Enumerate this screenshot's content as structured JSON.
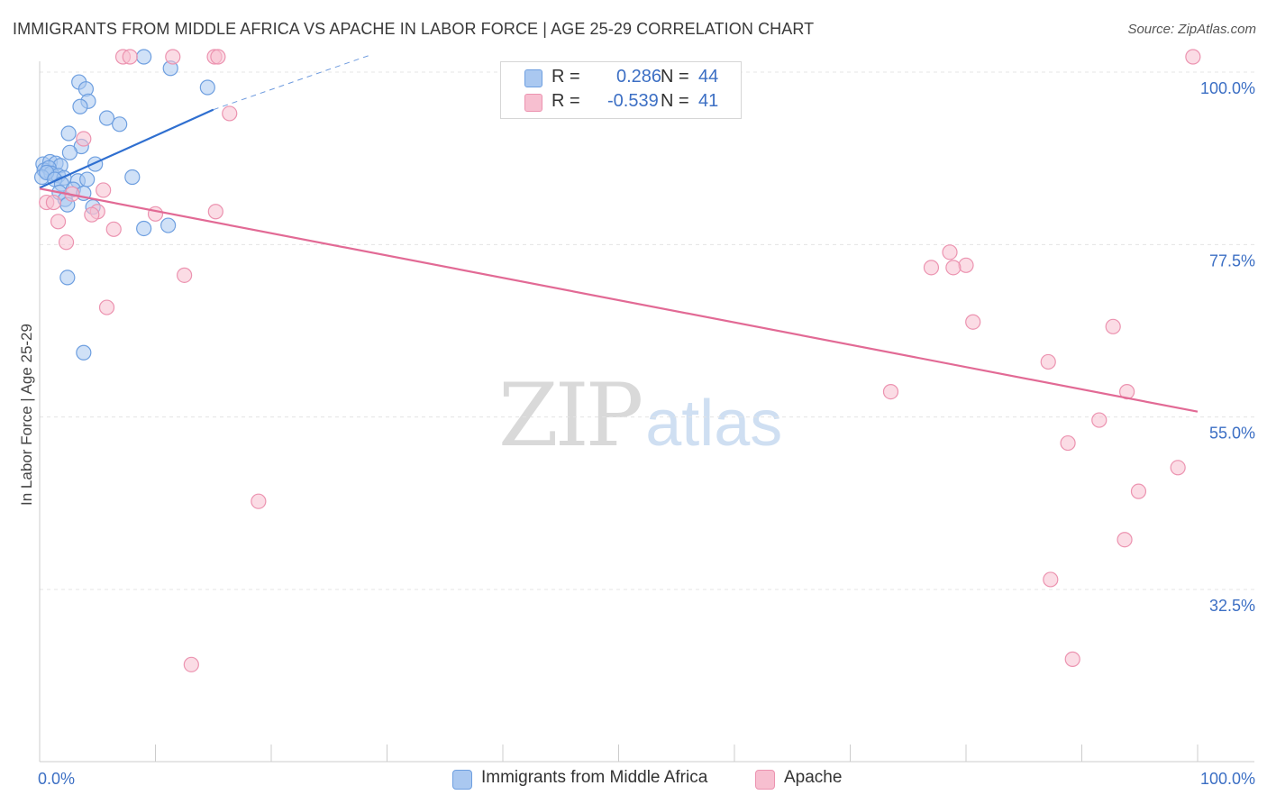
{
  "title": "IMMIGRANTS FROM MIDDLE AFRICA VS APACHE IN LABOR FORCE | AGE 25-29 CORRELATION CHART",
  "source": "Source: ZipAtlas.com",
  "watermark": {
    "zip": "ZIP",
    "atlas": "atlas"
  },
  "legend": {
    "rows": [
      {
        "r_label": "R =",
        "r_value": "0.286",
        "n_label": "N =",
        "n_value": "44"
      },
      {
        "r_label": "R =",
        "r_value": "-0.539",
        "n_label": "N =",
        "n_value": "41"
      }
    ]
  },
  "chart_data": {
    "type": "scatter",
    "ylabel": "In Labor Force | Age 25-29",
    "xlim": [
      0,
      100
    ],
    "ylim": [
      10,
      102
    ],
    "x_tick_labels": [
      "0.0%",
      "100.0%"
    ],
    "y_ticks": [
      {
        "value": 100.0,
        "label": "100.0%"
      },
      {
        "value": 77.5,
        "label": "77.5%"
      },
      {
        "value": 55.0,
        "label": "55.0%"
      },
      {
        "value": 32.5,
        "label": "32.5%"
      }
    ],
    "grid": true,
    "colors": {
      "blue_fill": "#aac8f0",
      "blue_stroke": "#6e9fe0",
      "blue_line": "#2f6fd0",
      "pink_fill": "#f7bfd0",
      "pink_stroke": "#ec93b0",
      "pink_line": "#e26a95",
      "tick_label": "#3c6fc4"
    },
    "series": [
      {
        "name": "Immigrants from Middle Africa",
        "color": "blue",
        "points": [
          [
            9.0,
            102.0
          ],
          [
            11.3,
            100.5
          ],
          [
            3.4,
            98.7
          ],
          [
            14.5,
            98.0
          ],
          [
            4.0,
            97.8
          ],
          [
            4.2,
            96.2
          ],
          [
            3.5,
            95.5
          ],
          [
            5.8,
            94.0
          ],
          [
            2.5,
            92.0
          ],
          [
            6.9,
            93.2
          ],
          [
            3.6,
            90.3
          ],
          [
            2.6,
            89.5
          ],
          [
            0.3,
            88.0
          ],
          [
            0.9,
            88.3
          ],
          [
            1.4,
            88.1
          ],
          [
            1.8,
            87.8
          ],
          [
            4.8,
            88.0
          ],
          [
            0.4,
            87.2
          ],
          [
            0.8,
            87.5
          ],
          [
            1.0,
            86.8
          ],
          [
            1.6,
            86.5
          ],
          [
            0.2,
            86.3
          ],
          [
            0.6,
            86.9
          ],
          [
            2.1,
            86.2
          ],
          [
            1.3,
            86.0
          ],
          [
            3.3,
            85.8
          ],
          [
            4.1,
            86.0
          ],
          [
            8.0,
            86.3
          ],
          [
            1.9,
            85.4
          ],
          [
            2.9,
            84.7
          ],
          [
            1.7,
            84.3
          ],
          [
            2.2,
            83.4
          ],
          [
            3.8,
            84.2
          ],
          [
            2.4,
            82.7
          ],
          [
            4.6,
            82.4
          ],
          [
            9.0,
            79.6
          ],
          [
            11.1,
            80.0
          ],
          [
            2.4,
            73.2
          ],
          [
            3.8,
            63.4
          ]
        ],
        "trend": {
          "x": [
            0,
            15
          ],
          "y": [
            84.9,
            95.1
          ]
        },
        "trend_extension": {
          "x": [
            15,
            28.5
          ],
          "y": [
            95.1,
            102.2
          ]
        }
      },
      {
        "name": "Apache",
        "color": "pink",
        "points": [
          [
            7.2,
            102.0
          ],
          [
            7.8,
            102.0
          ],
          [
            11.5,
            102.0
          ],
          [
            15.1,
            102.0
          ],
          [
            15.4,
            102.0
          ],
          [
            99.6,
            102.0
          ],
          [
            16.4,
            94.6
          ],
          [
            3.8,
            91.3
          ],
          [
            5.5,
            84.6
          ],
          [
            2.8,
            84.1
          ],
          [
            0.6,
            83.0
          ],
          [
            1.2,
            83.0
          ],
          [
            5.0,
            81.8
          ],
          [
            4.5,
            81.4
          ],
          [
            10.0,
            81.5
          ],
          [
            15.2,
            81.8
          ],
          [
            1.6,
            80.5
          ],
          [
            6.4,
            79.5
          ],
          [
            2.3,
            77.8
          ],
          [
            12.5,
            73.5
          ],
          [
            78.6,
            76.5
          ],
          [
            80.0,
            74.8
          ],
          [
            77.0,
            74.5
          ],
          [
            78.9,
            74.5
          ],
          [
            5.8,
            69.3
          ],
          [
            80.6,
            67.4
          ],
          [
            92.7,
            66.8
          ],
          [
            87.1,
            62.2
          ],
          [
            73.5,
            58.3
          ],
          [
            93.9,
            58.3
          ],
          [
            91.5,
            54.6
          ],
          [
            88.8,
            51.6
          ],
          [
            98.3,
            48.4
          ],
          [
            94.9,
            45.3
          ],
          [
            18.9,
            44.0
          ],
          [
            93.7,
            39.0
          ],
          [
            87.3,
            33.8
          ],
          [
            13.1,
            22.7
          ],
          [
            89.2,
            23.4
          ]
        ],
        "trend": {
          "x": [
            0,
            100
          ],
          "y": [
            84.8,
            55.7
          ]
        }
      }
    ]
  },
  "bottom_legend": [
    "Immigrants from Middle Africa",
    "Apache"
  ]
}
